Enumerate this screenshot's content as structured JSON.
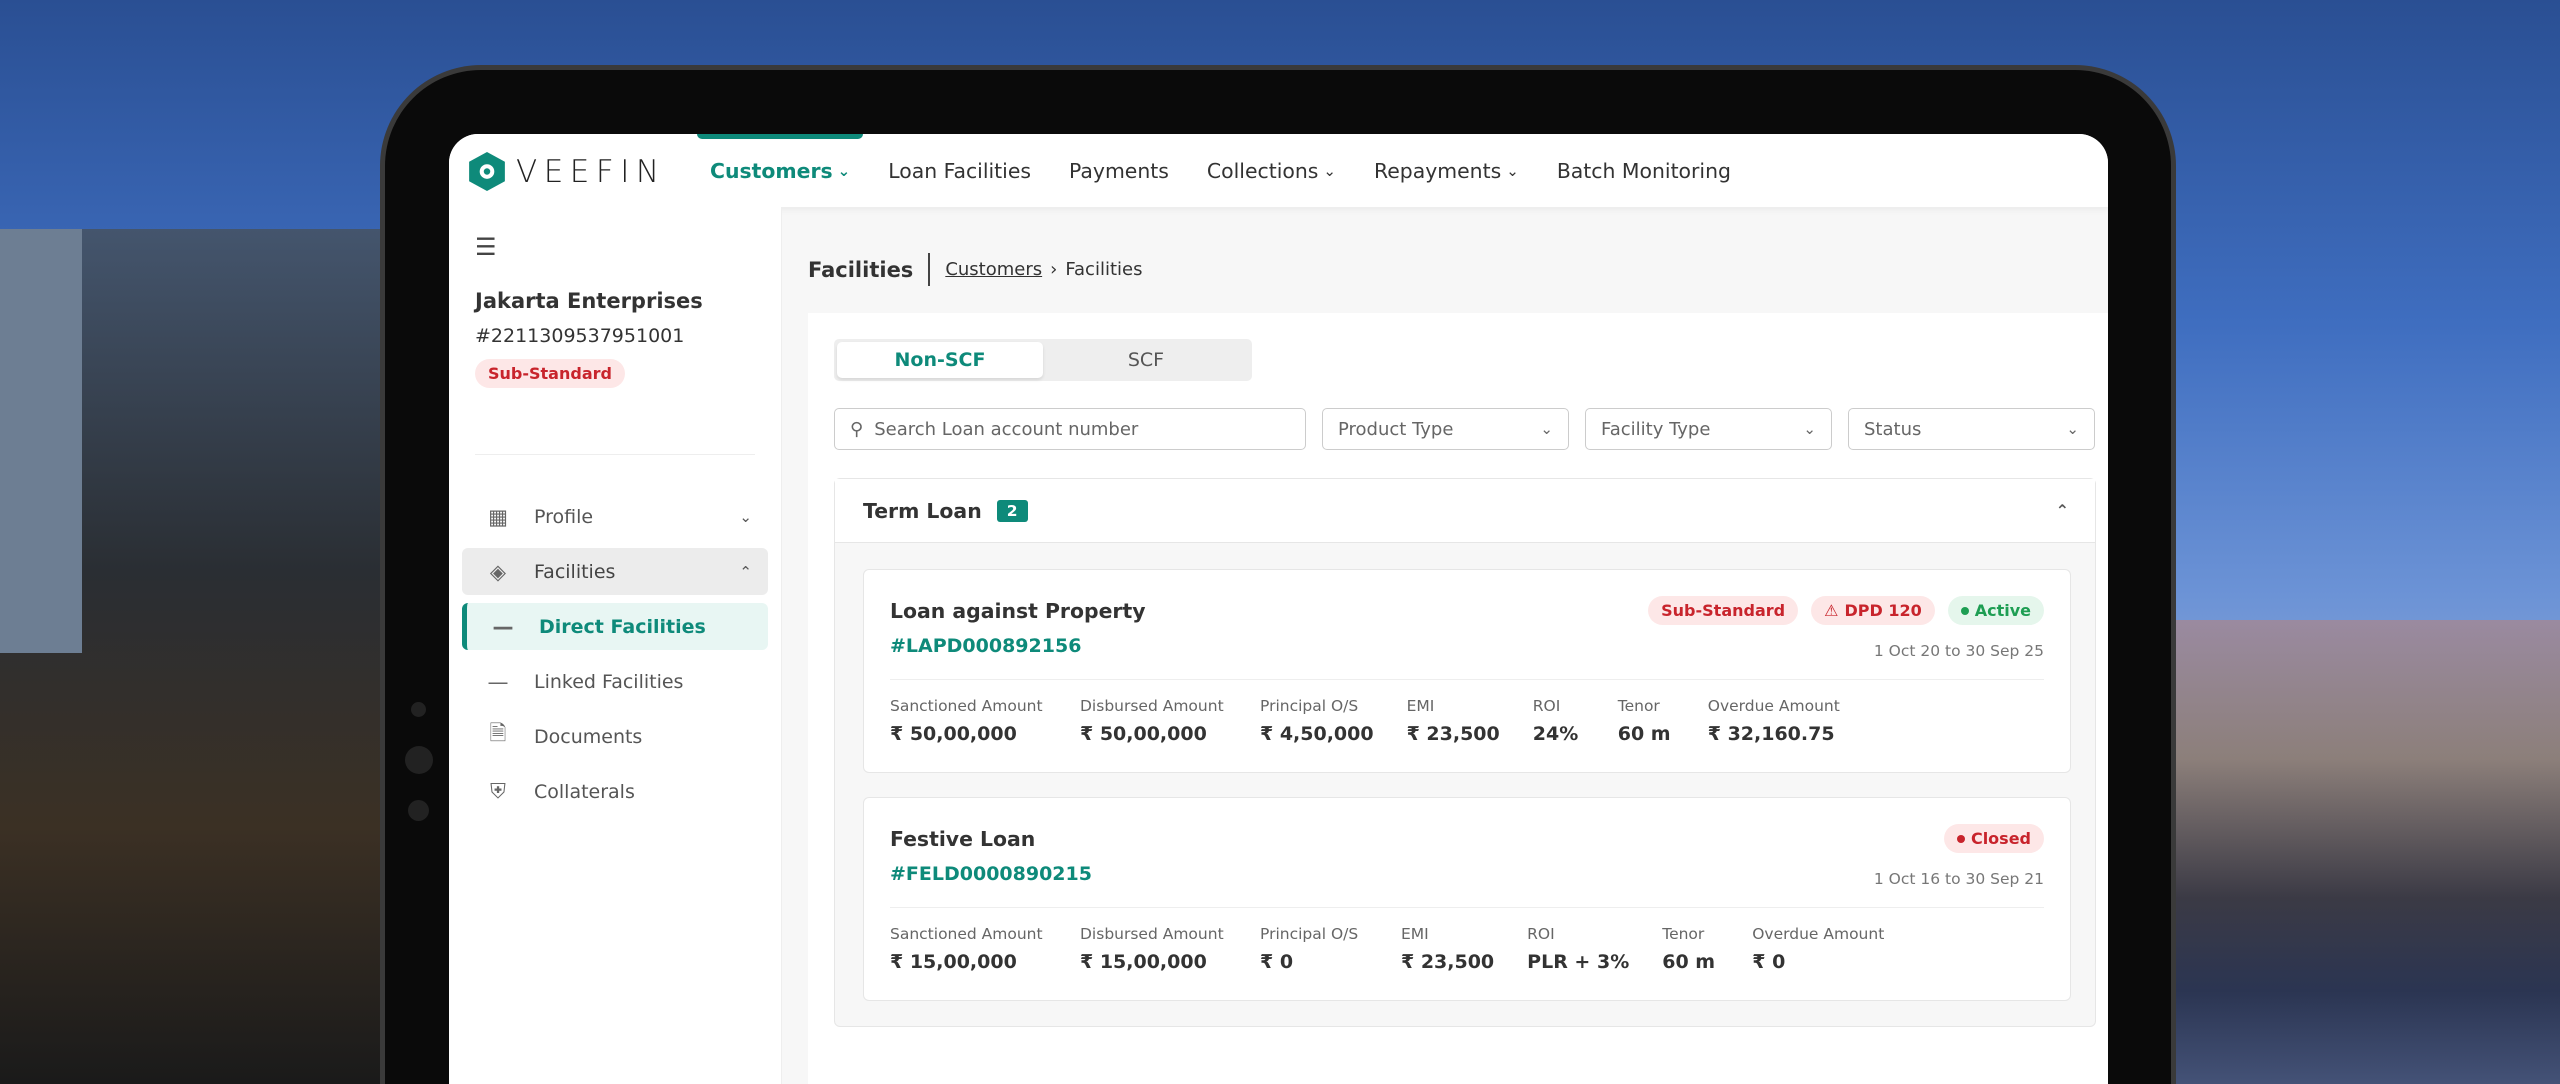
{
  "brand": {
    "name": "VEEFIN",
    "accent": "#0e8a7a"
  },
  "nav": [
    {
      "label": "Customers",
      "dropdown": true,
      "active": true
    },
    {
      "label": "Loan Facilities",
      "dropdown": false
    },
    {
      "label": "Payments",
      "dropdown": false
    },
    {
      "label": "Collections",
      "dropdown": true
    },
    {
      "label": "Repayments",
      "dropdown": true
    },
    {
      "label": "Batch Monitoring",
      "dropdown": false
    }
  ],
  "customer": {
    "name": "Jakarta Enterprises",
    "id": "#2211309537951001",
    "status": "Sub-Standard"
  },
  "sidebar": [
    {
      "label": "Profile",
      "icon": "grid-icon"
    },
    {
      "label": "Facilities",
      "icon": "layers-icon"
    },
    {
      "label": "Direct Facilities",
      "icon": "dash-icon"
    },
    {
      "label": "Linked Facilities",
      "icon": "dash-icon"
    },
    {
      "label": "Documents",
      "icon": "document-icon"
    },
    {
      "label": "Collaterals",
      "icon": "shield-icon"
    }
  ],
  "page": {
    "title": "Facilities",
    "breadcrumb": [
      "Customers",
      "Facilities"
    ]
  },
  "tabs": [
    "Non-SCF",
    "SCF"
  ],
  "filters": {
    "search_placeholder": "Search Loan account number",
    "product_type": "Product Type",
    "facility_type": "Facility Type",
    "status": "Status"
  },
  "group": {
    "title": "Term Loan",
    "count": "2"
  },
  "labels": [
    "Sanctioned Amount",
    "Disbursed Amount",
    "Principal O/S",
    "EMI",
    "ROI",
    "Tenor",
    "Overdue Amount"
  ],
  "facilities": [
    {
      "name": "Loan against Property",
      "account": "#LAPD000892156",
      "classification": "Sub-Standard",
      "dpd": "DPD 120",
      "status": "Active",
      "period": "1 Oct 20 to 30 Sep 25",
      "values": [
        "₹ 50,00,000",
        "₹ 50,00,000",
        "₹ 4,50,000",
        "₹ 23,500",
        "24%",
        "60 m",
        "₹ 32,160.75"
      ]
    },
    {
      "name": "Festive Loan",
      "account": "#FELD0000890215",
      "status": "Closed",
      "period": "1 Oct 16 to 30 Sep 21",
      "values": [
        "₹ 15,00,000",
        "₹ 15,00,000",
        "₹ 0",
        "₹ 23,500",
        "PLR + 3%",
        "60 m",
        "₹ 0"
      ]
    }
  ]
}
